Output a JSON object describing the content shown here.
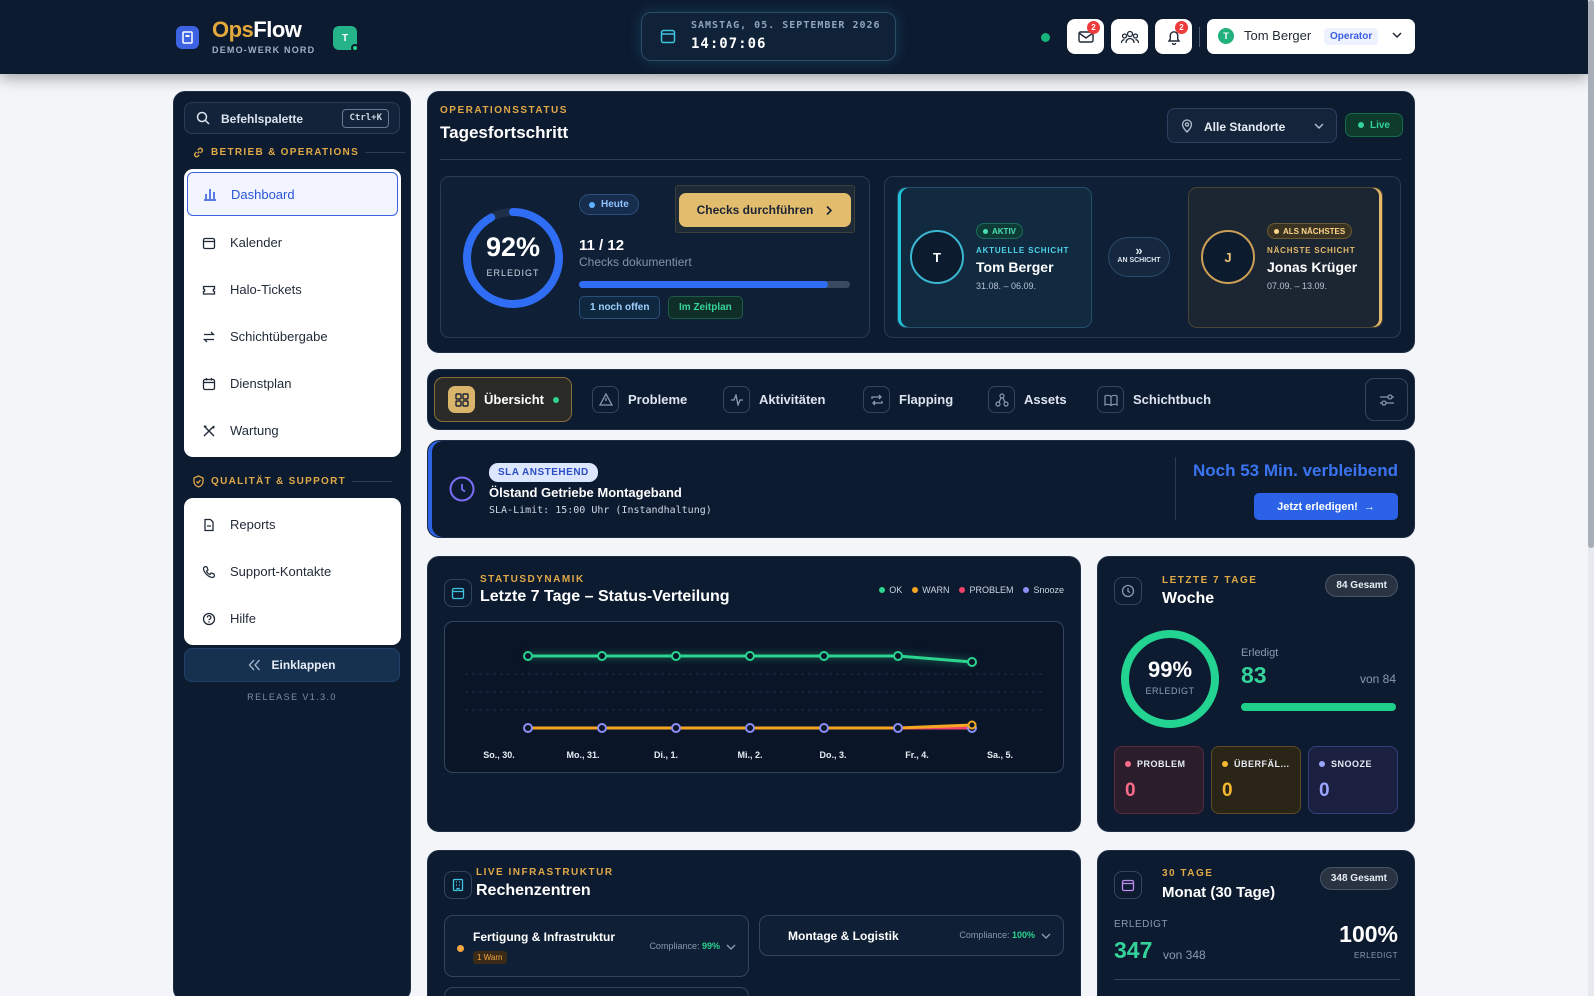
{
  "app": {
    "name_part1": "Ops",
    "name_part2": "Flow",
    "subtitle": "DEMO-WERK NORD",
    "tenant_badge": "T"
  },
  "clock": {
    "date": "SAMSTAG, 05. SEPTEMBER 2026",
    "time": "14:07:06"
  },
  "notifications": {
    "mail_count": "2",
    "bell_count": "2"
  },
  "user": {
    "avatar": "T",
    "name": "Tom Berger",
    "role": "Operator"
  },
  "sidebar": {
    "command_palette": "Befehlspalette",
    "shortcut": "Ctrl+K",
    "section1": "BETRIEB & OPERATIONS",
    "items1": [
      {
        "label": "Dashboard",
        "icon": "bar-chart-icon"
      },
      {
        "label": "Kalender",
        "icon": "calendar-icon"
      },
      {
        "label": "Halo-Tickets",
        "icon": "ticket-icon"
      },
      {
        "label": "Schichtübergabe",
        "icon": "swap-icon"
      },
      {
        "label": "Dienstplan",
        "icon": "calendar-icon"
      },
      {
        "label": "Wartung",
        "icon": "tools-icon"
      }
    ],
    "section2": "QUALITÄT & SUPPORT",
    "items2": [
      {
        "label": "Reports",
        "icon": "document-icon"
      },
      {
        "label": "Support-Kontakte",
        "icon": "phone-icon"
      },
      {
        "label": "Hilfe",
        "icon": "help-icon"
      }
    ],
    "collapse": "Einklappen",
    "release": "RELEASE V1.3.0"
  },
  "ops": {
    "eyebrow": "OPERATIONSSTATUS",
    "title": "Tagesfortschritt",
    "location": "Alle Standorte",
    "live": "Live",
    "percent_value": 92,
    "percent": "92%",
    "percent_label": "ERLEDIGT",
    "today": "Heute",
    "checks_button": "Checks durchführen",
    "done": "11 / 12",
    "done_label": "Checks dokumentiert",
    "progress": 0.92,
    "open_pill": "1 noch offen",
    "plan_pill": "Im Zeitplan"
  },
  "shift": {
    "current": {
      "initial": "T",
      "tag": "AKTIV",
      "role": "AKTUELLE SCHICHT",
      "name": "Tom Berger",
      "dates": "31.08. – 06.09."
    },
    "handover": "AN SCHICHT",
    "next": {
      "initial": "J",
      "tag": "ALS NÄCHSTES",
      "role": "NÄCHSTE SCHICHT",
      "name": "Jonas Krüger",
      "dates": "07.09. – 13.09."
    }
  },
  "tabs": [
    "Übersicht",
    "Probleme",
    "Aktivitäten",
    "Flapping",
    "Assets",
    "Schichtbuch"
  ],
  "sla": {
    "tag": "SLA ANSTEHEND",
    "title": "Ölstand Getriebe Montageband",
    "subtitle": "SLA-Limit: 15:00 Uhr (Instandhaltung)",
    "remaining": "Noch 53 Min. verbleibend",
    "button": "Jetzt erledigen!"
  },
  "status": {
    "eyebrow": "STATUSDYNAMIK",
    "title": "Letzte 7 Tage – Status-Verteilung",
    "legend": [
      "OK",
      "WARN",
      "PROBLEM",
      "Snooze"
    ]
  },
  "chart_data": {
    "type": "line",
    "categories": [
      "So., 30.",
      "Mo., 31.",
      "Di., 1.",
      "Mi., 2.",
      "Do., 3.",
      "Fr., 4.",
      "Sa., 5."
    ],
    "series": [
      {
        "name": "OK",
        "color": "#2bd48f",
        "values": [
          12,
          12,
          12,
          12,
          12,
          12,
          11
        ]
      },
      {
        "name": "WARN",
        "color": "#f5a623",
        "values": [
          0,
          0,
          0,
          0,
          0,
          0,
          0.5
        ]
      },
      {
        "name": "PROBLEM",
        "color": "#f0426b",
        "values": [
          0,
          0,
          0,
          0,
          0,
          0,
          0
        ]
      },
      {
        "name": "Snooze",
        "color": "#8b8ff5",
        "values": [
          0,
          0,
          0,
          0,
          0,
          0,
          0
        ]
      }
    ],
    "ylim": [
      0,
      12
    ],
    "grid": true,
    "legend_position": "top-right"
  },
  "week": {
    "eyebrow": "LETZTE 7 TAGE",
    "title": "Woche",
    "total": "84 Gesamt",
    "percent_value": 99,
    "percent": "99%",
    "percent_label": "ERLEDIGT",
    "done_label": "Erledigt",
    "done": "83",
    "of": "von 84",
    "progress": 0.99,
    "problem_label": "PROBLEM",
    "problem": "0",
    "overdue_label": "ÜBERFÄL...",
    "overdue": "0",
    "snooze_label": "SNOOZE",
    "snooze": "0"
  },
  "rz": {
    "eyebrow": "LIVE INFRASTRUKTUR",
    "title": "Rechenzentren",
    "a": {
      "name": "Fertigung & Infrastruktur",
      "warn": "1 Warn",
      "comp_label": "Compliance:",
      "comp": "99%"
    },
    "b": {
      "name": "Montage & Logistik",
      "comp_label": "Compliance:",
      "comp": "100%"
    }
  },
  "month": {
    "eyebrow": "30 TAGE",
    "title": "Monat (30 Tage)",
    "total": "348 Gesamt",
    "done_label": "ERLEDIGT",
    "done": "347",
    "of": "von 348",
    "percent": "100%",
    "percent_label": "ERLEDIGT"
  }
}
